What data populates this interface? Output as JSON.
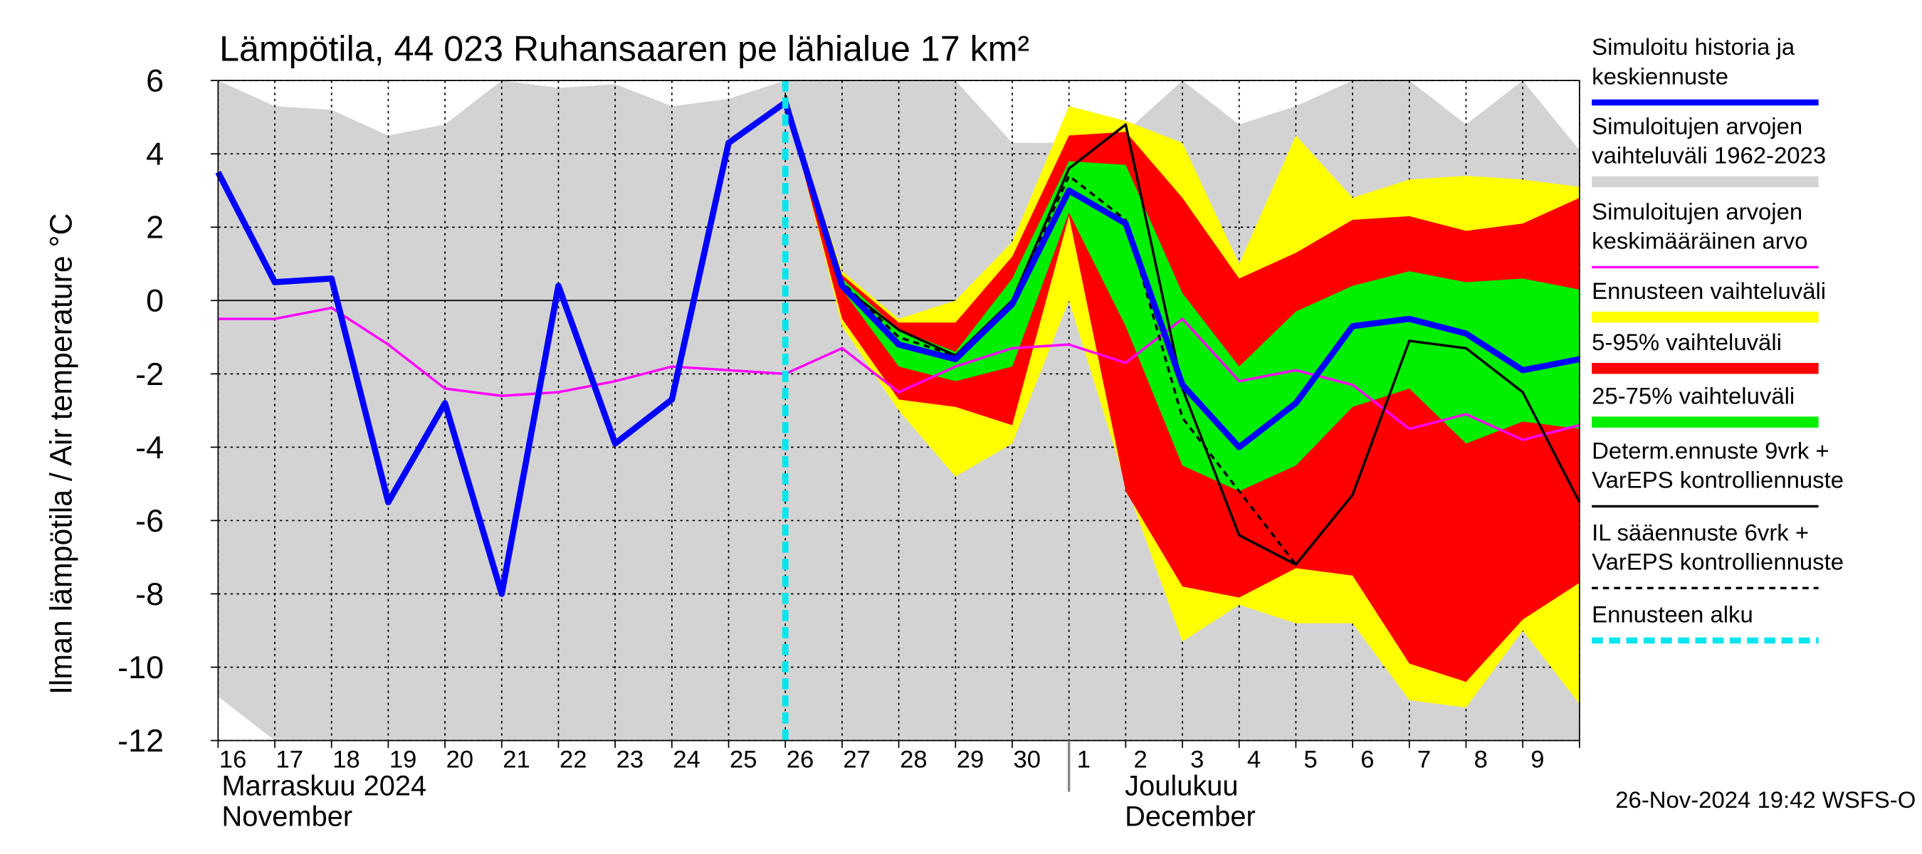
{
  "chart_data": {
    "type": "line",
    "title": "Lämpötila, 44 023 Ruhansaaren pe lähialue 17 km²",
    "y_label": "Ilman lämpötila / Air temperature   °C",
    "categories": [
      "16",
      "17",
      "18",
      "19",
      "20",
      "21",
      "22",
      "23",
      "24",
      "25",
      "26",
      "27",
      "28",
      "29",
      "30",
      "1",
      "2",
      "3",
      "4",
      "5",
      "6",
      "7",
      "8",
      "9",
      null
    ],
    "months": [
      {
        "lines": [
          "Marraskuu 2024",
          "November"
        ]
      },
      {
        "lines": [
          "Joulukuu",
          "December"
        ]
      }
    ],
    "timestamp": "26-Nov-2024 19:42 WSFS-O",
    "ylim": [
      -12,
      6
    ],
    "yticks": [
      -12,
      -10,
      -8,
      -6,
      -4,
      -2,
      0,
      2,
      4,
      6
    ],
    "grid": true,
    "series": [
      {
        "name": [
          "Simuloitu historia ja",
          "keskiennuste"
        ],
        "kind": "line",
        "color": "#0000ff",
        "width": 5,
        "values": [
          3.5,
          0.5,
          0.6,
          -5.5,
          -2.8,
          -8.0,
          0.4,
          -3.9,
          -2.7,
          4.3,
          5.4,
          0.4,
          -1.2,
          -1.6,
          -0.1,
          3.0,
          2.1,
          -2.3,
          -4.0,
          -2.8,
          -0.7,
          -0.5,
          -0.9,
          -1.9,
          -1.6
        ]
      },
      {
        "name": [
          "Simuloitujen arvojen",
          "vaihteluväli 1962-2023"
        ],
        "kind": "band",
        "color": "#d3d3d3",
        "low": [
          -10.8,
          -12,
          -12,
          -12,
          -12,
          -12,
          -12,
          -12,
          -12,
          -12,
          -12,
          -12,
          -12,
          -12,
          -12,
          -12,
          -12,
          -12,
          -12,
          -12,
          -12,
          -12,
          -12,
          -12,
          -12
        ],
        "high": [
          6,
          5.3,
          5.2,
          4.5,
          4.8,
          6,
          5.8,
          5.9,
          5.3,
          5.5,
          6,
          6,
          6,
          6,
          4.3,
          4.3,
          4.6,
          6,
          4.8,
          5.3,
          6,
          6,
          4.8,
          6,
          4.1
        ]
      },
      {
        "name": [
          "Simuloitujen arvojen",
          "keskimääräinen arvo"
        ],
        "kind": "line",
        "color": "#ff00ff",
        "width": 2,
        "values": [
          -0.5,
          -0.5,
          -0.2,
          -1.2,
          -2.4,
          -2.6,
          -2.5,
          -2.2,
          -1.8,
          -1.9,
          -2.0,
          -1.3,
          -2.5,
          -1.8,
          -1.3,
          -1.2,
          -1.7,
          -0.5,
          -2.2,
          -1.9,
          -2.3,
          -3.5,
          -3.1,
          -3.8,
          -3.4
        ]
      },
      {
        "name": [
          "Ennusteen vaihteluväli"
        ],
        "kind": "band",
        "color": "#ffff00",
        "low": [
          null,
          null,
          null,
          null,
          null,
          null,
          null,
          null,
          null,
          null,
          5.5,
          -0.7,
          -3,
          -4.8,
          -3.9,
          0,
          -5,
          -9.3,
          -8.3,
          -8.8,
          -8.8,
          -10.9,
          -11.1,
          -9,
          -11.0
        ],
        "high": [
          null,
          null,
          null,
          null,
          null,
          null,
          null,
          null,
          null,
          null,
          5.5,
          0.8,
          -0.5,
          0,
          1.6,
          5.3,
          4.9,
          4.3,
          1,
          4.5,
          2.8,
          3.3,
          3.4,
          3.3,
          3.1
        ]
      },
      {
        "name": [
          "5-95% vaihteluväli"
        ],
        "kind": "band",
        "color": "#ff0000",
        "low": [
          null,
          null,
          null,
          null,
          null,
          null,
          null,
          null,
          null,
          null,
          5.4,
          -0.5,
          -2.7,
          -2.9,
          -3.4,
          2.3,
          -5.2,
          -7.8,
          -8.1,
          -7.3,
          -7.5,
          -9.9,
          -10.4,
          -8.7,
          -7.7
        ],
        "high": [
          null,
          null,
          null,
          null,
          null,
          null,
          null,
          null,
          null,
          null,
          5.4,
          0.7,
          -0.6,
          -0.6,
          1.2,
          4.5,
          4.6,
          2.8,
          0.6,
          1.3,
          2.2,
          2.3,
          1.9,
          2.1,
          2.8
        ]
      },
      {
        "name": [
          "25-75% vaihteluväli"
        ],
        "kind": "band",
        "color": "#00ee00",
        "low": [
          null,
          null,
          null,
          null,
          null,
          null,
          null,
          null,
          null,
          null,
          5.4,
          0.3,
          -1.8,
          -2.2,
          -1.8,
          2.4,
          -0.7,
          -4.5,
          -5.2,
          -4.5,
          -2.9,
          -2.4,
          -3.9,
          -3.3,
          -3.5
        ],
        "high": [
          null,
          null,
          null,
          null,
          null,
          null,
          null,
          null,
          null,
          null,
          5.4,
          0.6,
          -0.8,
          -1.4,
          0.6,
          3.8,
          3.7,
          0.2,
          -1.8,
          -0.3,
          0.4,
          0.8,
          0.5,
          0.6,
          0.3
        ]
      },
      {
        "name": [
          "Determ.ennuste 9vrk +",
          "VarEPS kontrolliennuste"
        ],
        "kind": "line",
        "color": "#000000",
        "width": 2,
        "values": [
          null,
          null,
          null,
          null,
          null,
          null,
          null,
          null,
          null,
          null,
          5.6,
          0.4,
          -0.8,
          -1.5,
          0,
          3.6,
          4.8,
          -2.4,
          -6.4,
          -7.2,
          -5.3,
          -1.1,
          -1.3,
          -2.5,
          -5.5
        ]
      },
      {
        "name": [
          "IL sääennuste 6vrk  +",
          "  VarEPS kontrolliennuste"
        ],
        "kind": "line",
        "color": "#000000",
        "width": 2,
        "style": "dashed",
        "values": [
          null,
          null,
          null,
          null,
          null,
          null,
          null,
          null,
          null,
          null,
          5.5,
          0.5,
          -1,
          -1.5,
          0,
          3.4,
          2.2,
          -3.2,
          -5.2,
          -7.2,
          null,
          null,
          null,
          null,
          null
        ]
      },
      {
        "name": [
          "Ennusteen alku"
        ],
        "kind": "vline",
        "color": "#00e5ee",
        "width": 5,
        "style": "dashed",
        "at_category": "26"
      }
    ]
  }
}
